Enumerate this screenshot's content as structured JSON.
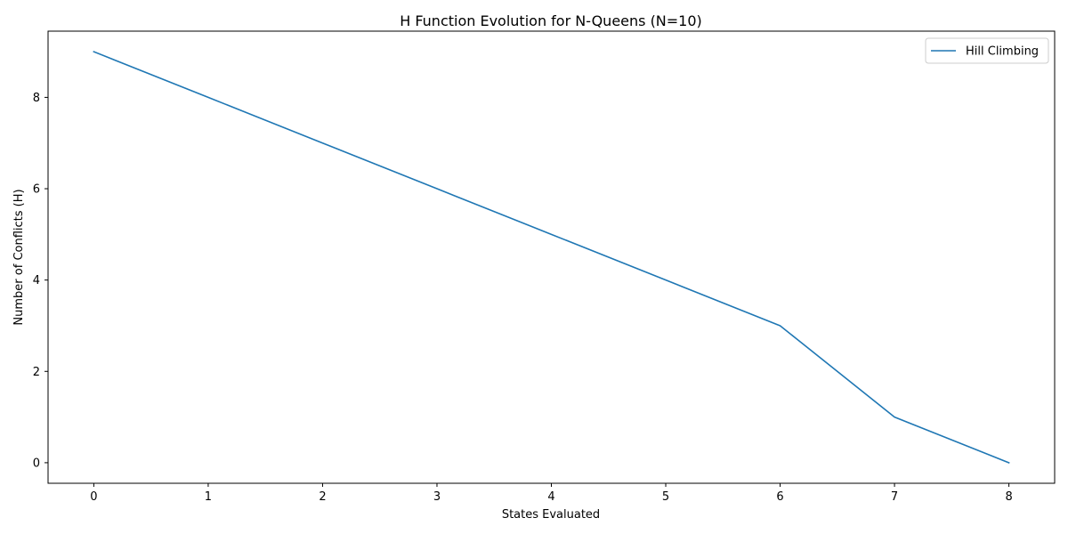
{
  "chart_data": {
    "type": "line",
    "title": "H Function Evolution for N-Queens (N=10)",
    "xlabel": "States Evaluated",
    "ylabel": "Number of Conflicts (H)",
    "x": [
      0,
      1,
      2,
      3,
      4,
      5,
      6,
      7,
      8
    ],
    "series": [
      {
        "name": "Hill Climbing",
        "values": [
          9,
          8,
          7,
          6,
          5,
          4,
          3,
          1,
          0
        ],
        "color": "#1f77b4"
      }
    ],
    "xticks": [
      "0",
      "1",
      "2",
      "3",
      "4",
      "5",
      "6",
      "7",
      "8"
    ],
    "yticks": [
      "0",
      "2",
      "4",
      "6",
      "8"
    ],
    "xlim": [
      -0.4,
      8.4
    ],
    "ylim": [
      -0.45,
      9.45
    ],
    "grid": false,
    "legend": "top-right"
  }
}
